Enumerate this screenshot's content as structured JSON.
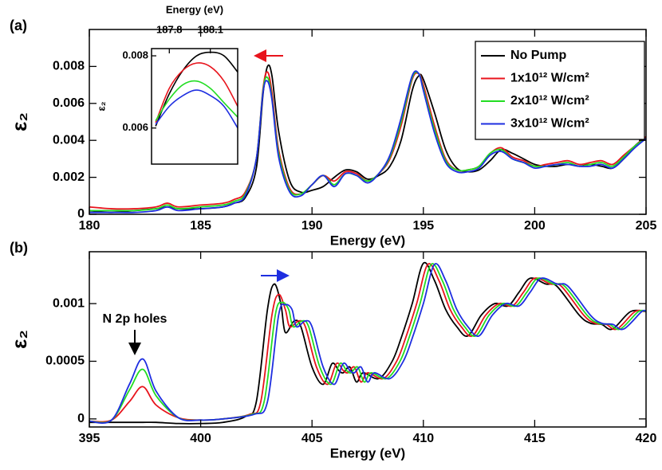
{
  "chart_data": [
    {
      "type": "line",
      "label": "(a)",
      "xlabel": "Energy (eV)",
      "ylabel": "ε₂",
      "x": [
        180,
        181,
        182,
        183,
        183.5,
        184,
        185,
        186,
        186.5,
        187,
        187.5,
        187.8,
        188,
        188.2,
        188.5,
        189,
        189.5,
        190,
        190.5,
        191,
        191.5,
        192,
        192.5,
        193,
        193.5,
        194,
        194.5,
        194.8,
        195,
        195.5,
        196,
        196.5,
        197,
        197.5,
        198,
        198.5,
        199,
        199.5,
        200,
        200.5,
        201,
        201.5,
        202,
        202.5,
        203,
        203.5,
        204,
        204.5,
        205
      ],
      "series": [
        {
          "name": "No Pump",
          "color": "#000000",
          "values": [
            0.0002,
            0.0001,
            0.0002,
            0.0003,
            0.0004,
            0.0003,
            0.0003,
            0.0004,
            0.0006,
            0.0009,
            0.0025,
            0.0065,
            0.008,
            0.0075,
            0.0045,
            0.0018,
            0.0012,
            0.0013,
            0.0015,
            0.002,
            0.0024,
            0.0023,
            0.0019,
            0.0021,
            0.0026,
            0.004,
            0.0067,
            0.0075,
            0.0073,
            0.0055,
            0.0035,
            0.0025,
            0.0023,
            0.0024,
            0.0029,
            0.0035,
            0.0033,
            0.003,
            0.0027,
            0.0026,
            0.0026,
            0.0027,
            0.0026,
            0.0027,
            0.0026,
            0.0025,
            0.003,
            0.0037,
            0.0042
          ]
        },
        {
          "name": "1x10¹² W/cm²",
          "color": "#e8141c",
          "values": [
            0.0004,
            0.0003,
            0.0003,
            0.0004,
            0.0006,
            0.0004,
            0.0005,
            0.0006,
            0.0008,
            0.0012,
            0.003,
            0.0068,
            0.0077,
            0.0066,
            0.0035,
            0.0014,
            0.0011,
            0.0016,
            0.0021,
            0.0018,
            0.0023,
            0.0022,
            0.0018,
            0.0022,
            0.003,
            0.0048,
            0.0073,
            0.0076,
            0.007,
            0.0048,
            0.003,
            0.0024,
            0.0024,
            0.0026,
            0.0033,
            0.0036,
            0.0031,
            0.0029,
            0.0026,
            0.0027,
            0.0028,
            0.0029,
            0.0027,
            0.0028,
            0.0029,
            0.0027,
            0.0032,
            0.0037,
            0.0042
          ]
        },
        {
          "name": "2x10¹² W/cm²",
          "color": "#22dd22",
          "values": [
            0.0002,
            0.0002,
            0.0002,
            0.0003,
            0.0005,
            0.0003,
            0.0004,
            0.0005,
            0.0007,
            0.0011,
            0.003,
            0.0067,
            0.0074,
            0.0063,
            0.0033,
            0.0013,
            0.0011,
            0.0016,
            0.0021,
            0.0016,
            0.0022,
            0.0021,
            0.0018,
            0.0022,
            0.0031,
            0.005,
            0.0074,
            0.0076,
            0.0068,
            0.0046,
            0.0029,
            0.0024,
            0.0024,
            0.0026,
            0.0033,
            0.0035,
            0.003,
            0.0028,
            0.0026,
            0.0026,
            0.0027,
            0.0028,
            0.0026,
            0.0027,
            0.0028,
            0.0026,
            0.0031,
            0.0037,
            0.0041
          ]
        },
        {
          "name": "3x10¹² W/cm²",
          "color": "#1e2ee0",
          "values": [
            0.0001,
            0.0001,
            0.0001,
            0.0002,
            0.0004,
            0.0002,
            0.0003,
            0.0004,
            0.0006,
            0.001,
            0.003,
            0.0066,
            0.0072,
            0.0062,
            0.0031,
            0.0012,
            0.001,
            0.0016,
            0.0021,
            0.0015,
            0.0022,
            0.0021,
            0.0017,
            0.0022,
            0.0032,
            0.0052,
            0.0075,
            0.0076,
            0.0067,
            0.0044,
            0.0028,
            0.0023,
            0.0023,
            0.0025,
            0.0032,
            0.0034,
            0.003,
            0.0028,
            0.0025,
            0.0026,
            0.0027,
            0.0027,
            0.0026,
            0.0026,
            0.0027,
            0.0025,
            0.003,
            0.0036,
            0.0041
          ]
        }
      ],
      "xlim": [
        180,
        205
      ],
      "xticks": [
        180,
        185,
        190,
        195,
        200,
        205
      ],
      "ylim": [
        0,
        0.01
      ],
      "yticks": [
        0,
        0.002,
        0.004,
        0.006,
        0.008
      ],
      "legend": "upper right"
    },
    {
      "type": "line",
      "label": "(b)",
      "xlabel": "Energy (eV)",
      "ylabel": "ε₂",
      "annotation": "N 2p holes",
      "series": [
        {
          "color": "#000000",
          "x": [
            395,
            396,
            397,
            397.4,
            398,
            399,
            400,
            401,
            402,
            402.5,
            403,
            403.3,
            403.6,
            403.8,
            404.2,
            404.5,
            405,
            405.5,
            405.9,
            406.2,
            406.4,
            406.7,
            407,
            407.3,
            408,
            408.6,
            409,
            409.5,
            410,
            410.5,
            411,
            411.5,
            412,
            412.6,
            413.2,
            413.8,
            414.3,
            414.8,
            415.5,
            416,
            417,
            417.5,
            418,
            418.5,
            419.3,
            420
          ],
          "values": [
            -3e-05,
            -3e-05,
            -3e-05,
            -3e-05,
            -3e-05,
            -4e-05,
            -4e-05,
            -3e-05,
            2e-05,
            0.00015,
            0.00095,
            0.00117,
            0.001,
            0.00075,
            0.00085,
            0.0008,
            0.00045,
            0.0003,
            0.00048,
            0.00042,
            0.0004,
            0.00045,
            0.00032,
            0.0004,
            0.00035,
            0.0005,
            0.0007,
            0.001,
            0.00135,
            0.0012,
            0.00095,
            0.0008,
            0.00072,
            0.0009,
            0.001,
            0.00098,
            0.0011,
            0.00122,
            0.00117,
            0.00115,
            0.0009,
            0.00083,
            0.00082,
            0.00078,
            0.00093,
            0.00093
          ]
        },
        {
          "color": "#e8141c",
          "x": [
            395,
            396,
            396.8,
            397.4,
            398,
            399,
            400,
            401,
            402.2,
            402.7,
            403.2,
            403.5,
            403.8,
            404,
            404.4,
            404.7,
            405.2,
            405.7,
            406.1,
            406.4,
            406.6,
            406.9,
            407.2,
            407.5,
            408.2,
            408.8,
            409.2,
            409.7,
            410.2,
            410.7,
            411.2,
            411.7,
            412.2,
            412.8,
            413.4,
            414,
            414.5,
            415,
            415.7,
            416.2,
            417.2,
            417.7,
            418.2,
            418.7,
            419.5,
            420
          ],
          "values": [
            -2e-05,
            -1e-05,
            0.00015,
            0.00028,
            0.00012,
            1e-05,
            -1e-05,
            0,
            4e-05,
            0.00015,
            0.0009,
            0.00108,
            0.00095,
            0.0008,
            0.00085,
            0.0008,
            0.00045,
            0.0003,
            0.00048,
            0.00042,
            0.0004,
            0.00045,
            0.00032,
            0.0004,
            0.00035,
            0.0005,
            0.0007,
            0.001,
            0.00134,
            0.0012,
            0.00095,
            0.0008,
            0.00072,
            0.0009,
            0.001,
            0.00098,
            0.0011,
            0.00122,
            0.00117,
            0.00115,
            0.0009,
            0.00083,
            0.00082,
            0.00078,
            0.00093,
            0.00093
          ]
        },
        {
          "color": "#22dd22",
          "x": [
            395,
            396,
            396.8,
            397.4,
            398,
            399,
            400,
            401,
            402.3,
            402.85,
            403.35,
            403.65,
            403.95,
            404.15,
            404.55,
            404.85,
            405.35,
            405.85,
            406.25,
            406.55,
            406.75,
            407.05,
            407.35,
            407.65,
            408.35,
            408.95,
            409.35,
            409.85,
            410.35,
            410.85,
            411.35,
            411.85,
            412.35,
            412.95,
            413.55,
            414.15,
            414.65,
            415.15,
            415.85,
            416.35,
            417.35,
            417.85,
            418.35,
            418.85,
            419.65,
            420
          ],
          "values": [
            -2e-05,
            -1e-05,
            0.00025,
            0.00043,
            0.0002,
            1e-05,
            -1e-05,
            0,
            4e-05,
            0.00015,
            0.0009,
            0.00101,
            0.00095,
            0.0008,
            0.00085,
            0.0008,
            0.00045,
            0.0003,
            0.00048,
            0.00042,
            0.0004,
            0.00045,
            0.00032,
            0.0004,
            0.00035,
            0.0005,
            0.0007,
            0.001,
            0.00134,
            0.0012,
            0.00095,
            0.0008,
            0.00072,
            0.0009,
            0.001,
            0.00098,
            0.0011,
            0.00122,
            0.00117,
            0.00115,
            0.0009,
            0.00083,
            0.00082,
            0.00078,
            0.00093,
            0.00093
          ]
        },
        {
          "color": "#1e2ee0",
          "x": [
            395,
            396,
            396.8,
            397.4,
            398,
            399,
            400,
            401,
            402.4,
            403,
            403.5,
            403.8,
            404.1,
            404.3,
            404.7,
            405,
            405.5,
            406,
            406.4,
            406.7,
            406.9,
            407.2,
            407.5,
            407.8,
            408.5,
            409.1,
            409.5,
            410,
            410.5,
            411,
            411.5,
            412,
            412.5,
            413.1,
            413.7,
            414.3,
            414.8,
            415.3,
            416,
            416.5,
            417.5,
            418,
            418.5,
            419,
            419.8,
            420
          ],
          "values": [
            -2e-05,
            -1e-05,
            0.0003,
            0.00052,
            0.00024,
            1e-05,
            -1e-05,
            0,
            4e-05,
            0.00015,
            0.0009,
            0.00099,
            0.00095,
            0.0008,
            0.00085,
            0.0008,
            0.00045,
            0.0003,
            0.00048,
            0.00042,
            0.0004,
            0.00045,
            0.00032,
            0.0004,
            0.00035,
            0.0005,
            0.0007,
            0.001,
            0.00134,
            0.0012,
            0.00095,
            0.0008,
            0.00072,
            0.0009,
            0.001,
            0.00098,
            0.0011,
            0.00122,
            0.00117,
            0.00115,
            0.0009,
            0.00083,
            0.00082,
            0.00078,
            0.00093,
            0.00093
          ]
        }
      ],
      "xlim": [
        395,
        420
      ],
      "xticks": [
        395,
        400,
        405,
        410,
        415,
        420
      ],
      "ylim": [
        -7e-05,
        0.00145
      ],
      "yticks": [
        0,
        0.0005,
        0.001
      ]
    },
    {
      "type": "line",
      "xlabel": "Energy (eV)",
      "ylabel": "ε₂",
      "xaxis_position": "top",
      "x": [
        187.7,
        187.8,
        187.9,
        188.0,
        188.1,
        188.2,
        188.3
      ],
      "series": [
        {
          "color": "#000000",
          "values": [
            0.00605,
            0.00695,
            0.0076,
            0.008,
            0.0081,
            0.008,
            0.00755
          ]
        },
        {
          "color": "#e8141c",
          "values": [
            0.00615,
            0.0071,
            0.0076,
            0.0078,
            0.0077,
            0.0073,
            0.0066
          ]
        },
        {
          "color": "#22dd22",
          "values": [
            0.0062,
            0.0068,
            0.0072,
            0.0073,
            0.0071,
            0.0067,
            0.0063
          ]
        },
        {
          "color": "#1e2ee0",
          "values": [
            0.0061,
            0.0066,
            0.0069,
            0.00705,
            0.0069,
            0.0066,
            0.006
          ]
        }
      ],
      "xlim": [
        187.67,
        188.3
      ],
      "xticks": [
        187.8,
        188.1
      ],
      "ylim": [
        0.005,
        0.0082
      ],
      "yticks": [
        0.006,
        0.008
      ]
    }
  ]
}
